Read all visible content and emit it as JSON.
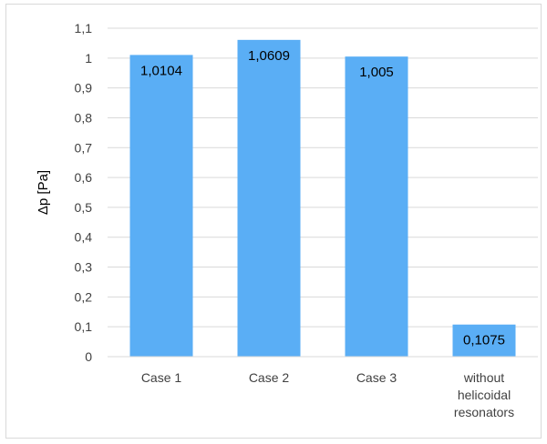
{
  "chart_data": {
    "type": "bar",
    "categories": [
      "Case 1",
      "Case 2",
      "Case 3",
      "without helicoidal resonators"
    ],
    "category_lines": [
      [
        "Case 1"
      ],
      [
        "Case 2"
      ],
      [
        "Case 3"
      ],
      [
        "without",
        "helicoidal",
        "resonators"
      ]
    ],
    "values": [
      1.0104,
      1.0609,
      1.005,
      0.1075
    ],
    "data_labels": [
      "1,0104",
      "1,0609",
      "1,005",
      "0,1075"
    ],
    "title": "",
    "xlabel": "",
    "ylabel": "Δp [Pa]",
    "ylim": [
      0,
      1.1
    ],
    "yticks": [
      0,
      0.1,
      0.2,
      0.3,
      0.4,
      0.5,
      0.6,
      0.7,
      0.8,
      0.9,
      1,
      1.1
    ],
    "ytick_labels": [
      "0",
      "0,1",
      "0,2",
      "0,3",
      "0,4",
      "0,5",
      "0,6",
      "0,7",
      "0,8",
      "0,9",
      "1",
      "1,1"
    ],
    "grid": true,
    "legend": "none",
    "bar_color": "#5aaef5",
    "grid_color": "#d9d9d9"
  }
}
